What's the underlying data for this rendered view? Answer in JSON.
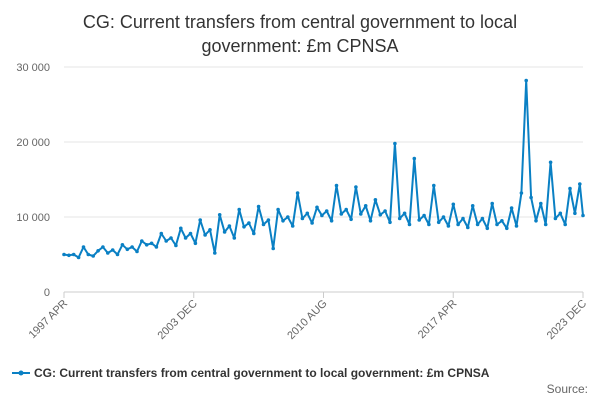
{
  "chart_data": {
    "type": "line",
    "title_lines": [
      "CG: Current transfers from central government to local",
      "government: £m CPNSA"
    ],
    "xlabel": "",
    "ylabel": "",
    "ylim": [
      0,
      30000
    ],
    "y_ticks": [
      0,
      10000,
      20000,
      30000
    ],
    "y_tick_labels": [
      "0",
      "10 000",
      "20 000",
      "30 000"
    ],
    "x_range": [
      "1997-04",
      "2023-12"
    ],
    "x_ticks": [
      "1997-04",
      "2003-12",
      "2010-08",
      "2017-04",
      "2023-12"
    ],
    "x_tick_labels": [
      "1997 APR",
      "2003 DEC",
      "2010 AUG",
      "2017 APR",
      "2023 DEC"
    ],
    "grid": "horizontal",
    "legend_position": "bottom",
    "source_label": "Source:",
    "colors": {
      "series": "#0a80c4",
      "grid": "#e6e6e6",
      "axis": "#cccccc"
    },
    "series": [
      {
        "name": "CG: Current transfers from central government to local government: £m CPNSA",
        "points": [
          [
            "1997-04",
            5000
          ],
          [
            "1997-07",
            4900
          ],
          [
            "1997-10",
            5000
          ],
          [
            "1998-01",
            4600
          ],
          [
            "1998-04",
            6000
          ],
          [
            "1998-07",
            5000
          ],
          [
            "1998-10",
            4800
          ],
          [
            "1999-01",
            5500
          ],
          [
            "1999-04",
            6000
          ],
          [
            "1999-07",
            5200
          ],
          [
            "1999-10",
            5600
          ],
          [
            "2000-01",
            5000
          ],
          [
            "2000-04",
            6300
          ],
          [
            "2000-07",
            5700
          ],
          [
            "2000-10",
            6000
          ],
          [
            "2001-01",
            5400
          ],
          [
            "2001-04",
            6800
          ],
          [
            "2001-07",
            6300
          ],
          [
            "2001-10",
            6500
          ],
          [
            "2002-01",
            6000
          ],
          [
            "2002-04",
            7800
          ],
          [
            "2002-07",
            6800
          ],
          [
            "2002-10",
            7200
          ],
          [
            "2003-01",
            6200
          ],
          [
            "2003-04",
            8500
          ],
          [
            "2003-07",
            7200
          ],
          [
            "2003-10",
            7800
          ],
          [
            "2004-01",
            6500
          ],
          [
            "2004-04",
            9600
          ],
          [
            "2004-07",
            7600
          ],
          [
            "2004-10",
            8300
          ],
          [
            "2005-01",
            5200
          ],
          [
            "2005-04",
            10300
          ],
          [
            "2005-07",
            8000
          ],
          [
            "2005-10",
            8800
          ],
          [
            "2006-01",
            7200
          ],
          [
            "2006-04",
            11000
          ],
          [
            "2006-07",
            8700
          ],
          [
            "2006-10",
            9200
          ],
          [
            "2007-01",
            7800
          ],
          [
            "2007-04",
            11400
          ],
          [
            "2007-07",
            9000
          ],
          [
            "2007-10",
            9600
          ],
          [
            "2008-01",
            5800
          ],
          [
            "2008-04",
            11000
          ],
          [
            "2008-07",
            9500
          ],
          [
            "2008-10",
            10000
          ],
          [
            "2009-01",
            8800
          ],
          [
            "2009-04",
            13200
          ],
          [
            "2009-07",
            9800
          ],
          [
            "2009-10",
            10500
          ],
          [
            "2010-01",
            9200
          ],
          [
            "2010-04",
            11300
          ],
          [
            "2010-07",
            10200
          ],
          [
            "2010-10",
            10800
          ],
          [
            "2011-01",
            9500
          ],
          [
            "2011-04",
            14200
          ],
          [
            "2011-07",
            10400
          ],
          [
            "2011-10",
            11000
          ],
          [
            "2012-01",
            9700
          ],
          [
            "2012-04",
            14000
          ],
          [
            "2012-07",
            10400
          ],
          [
            "2012-10",
            11500
          ],
          [
            "2013-01",
            9500
          ],
          [
            "2013-04",
            12300
          ],
          [
            "2013-07",
            10300
          ],
          [
            "2013-10",
            10800
          ],
          [
            "2014-01",
            9300
          ],
          [
            "2014-04",
            19800
          ],
          [
            "2014-07",
            9800
          ],
          [
            "2014-10",
            10500
          ],
          [
            "2015-01",
            9000
          ],
          [
            "2015-04",
            17800
          ],
          [
            "2015-07",
            9600
          ],
          [
            "2015-10",
            10200
          ],
          [
            "2016-01",
            9000
          ],
          [
            "2016-04",
            14200
          ],
          [
            "2016-07",
            9300
          ],
          [
            "2016-10",
            10000
          ],
          [
            "2017-01",
            8800
          ],
          [
            "2017-04",
            11700
          ],
          [
            "2017-07",
            9000
          ],
          [
            "2017-10",
            9800
          ],
          [
            "2018-01",
            8600
          ],
          [
            "2018-04",
            11500
          ],
          [
            "2018-07",
            9000
          ],
          [
            "2018-10",
            9800
          ],
          [
            "2019-01",
            8500
          ],
          [
            "2019-04",
            11800
          ],
          [
            "2019-07",
            9000
          ],
          [
            "2019-10",
            9500
          ],
          [
            "2020-01",
            8500
          ],
          [
            "2020-04",
            11200
          ],
          [
            "2020-07",
            8800
          ],
          [
            "2020-10",
            13200
          ],
          [
            "2021-01",
            28200
          ],
          [
            "2021-04",
            12600
          ],
          [
            "2021-07",
            9500
          ],
          [
            "2021-10",
            11800
          ],
          [
            "2022-01",
            9000
          ],
          [
            "2022-04",
            17300
          ],
          [
            "2022-07",
            9800
          ],
          [
            "2022-10",
            10500
          ],
          [
            "2023-01",
            9000
          ],
          [
            "2023-04",
            13800
          ],
          [
            "2023-07",
            10500
          ],
          [
            "2023-10",
            14400
          ],
          [
            "2023-12",
            10200
          ]
        ]
      }
    ]
  }
}
